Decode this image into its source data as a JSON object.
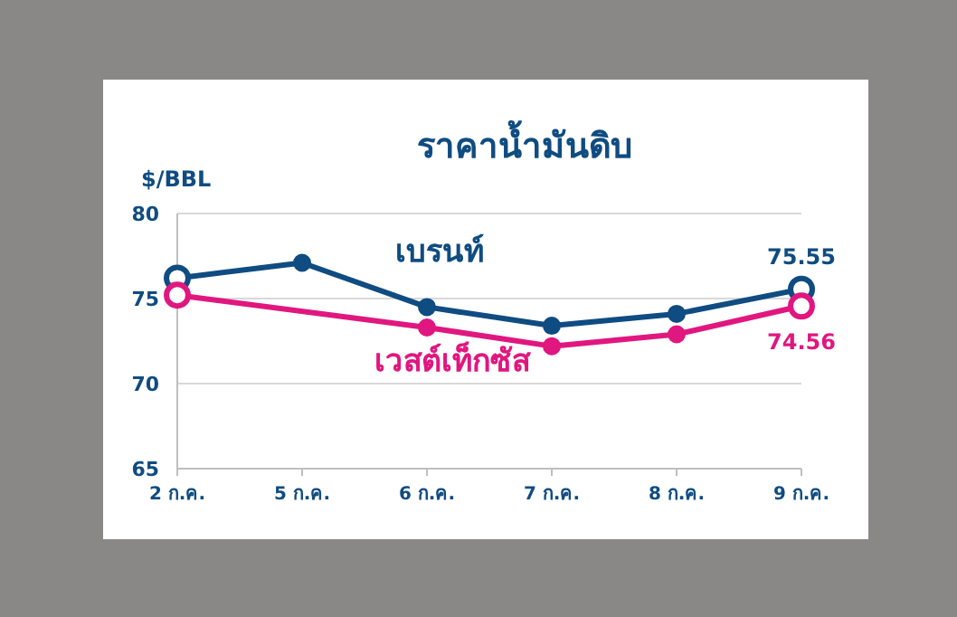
{
  "chart_data": {
    "type": "line",
    "title": "ราคาน้ำมันดิบ",
    "ylabel": "$/BBL",
    "categories": [
      "2 ก.ค.",
      "5 ก.ค.",
      "6 ก.ค.",
      "7 ก.ค.",
      "8 ก.ค.",
      "9 ก.ค."
    ],
    "series": [
      {
        "name": "เบรนท์",
        "color": "#0f4c81",
        "values": [
          76.2,
          77.1,
          74.5,
          73.4,
          74.1,
          75.55
        ],
        "value_labels": [
          null,
          null,
          null,
          null,
          null,
          "75.55"
        ]
      },
      {
        "name": "เวสต์เท็กซัส",
        "color": "#e0177f",
        "values": [
          75.2,
          null,
          73.3,
          72.2,
          72.9,
          74.56
        ],
        "value_labels": [
          null,
          null,
          null,
          null,
          null,
          "74.56"
        ]
      }
    ],
    "ylim": [
      65,
      80
    ],
    "yticks": [
      65,
      70,
      75,
      80
    ],
    "grid": "y",
    "marker": "circle",
    "line_style": "solid"
  }
}
